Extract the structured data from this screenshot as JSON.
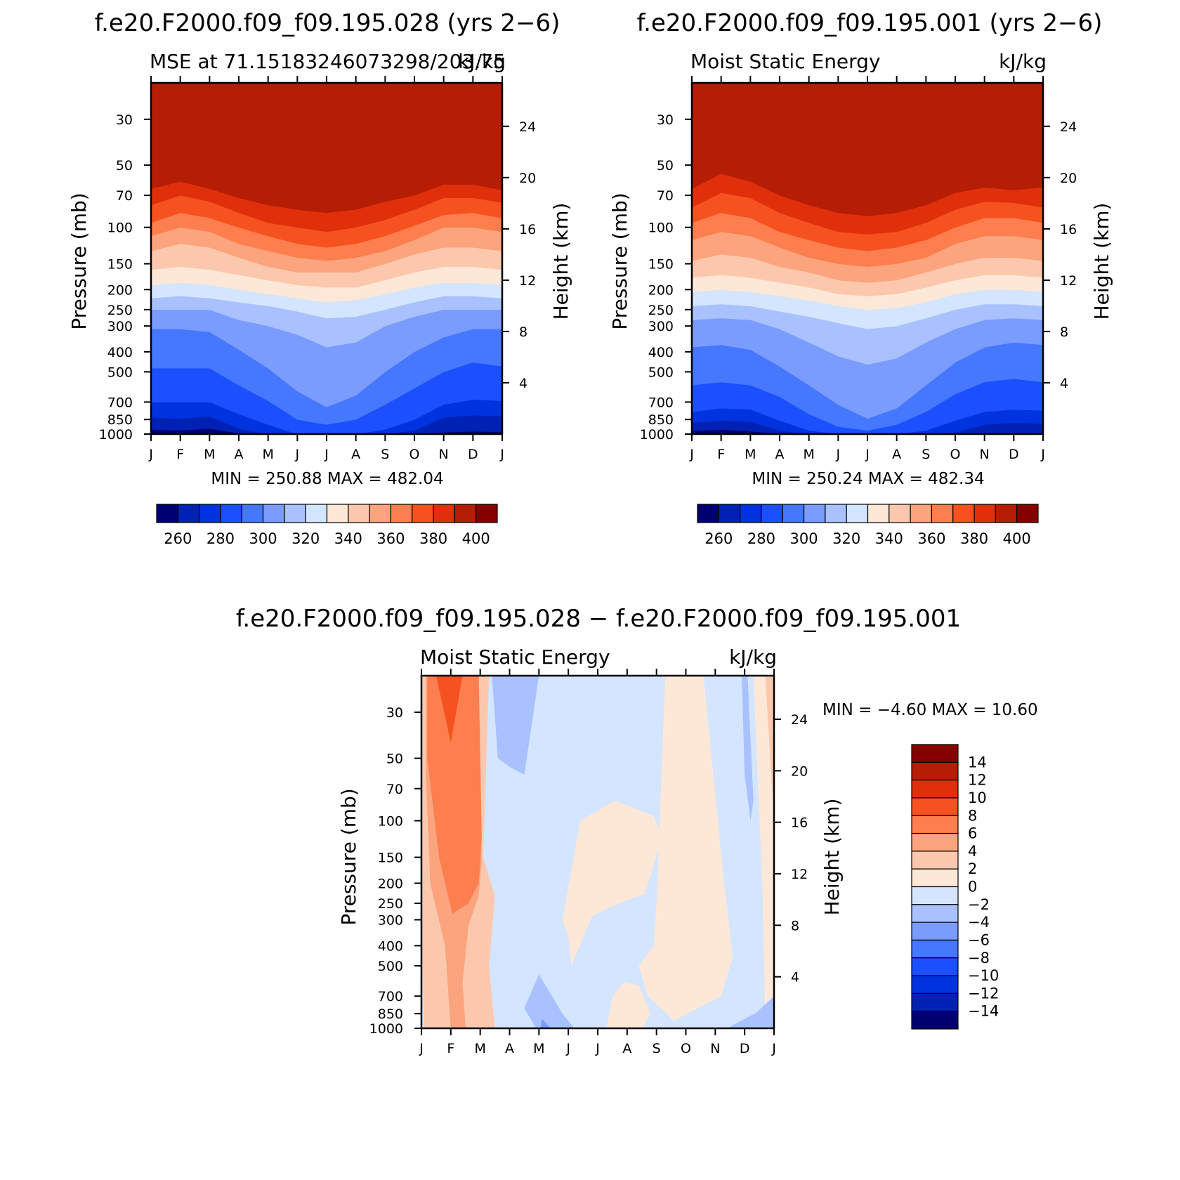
{
  "palette": {
    "blue_to_red": [
      "#00006e",
      "#0022b4",
      "#0033e0",
      "#1a50ff",
      "#4677ff",
      "#7a9cff",
      "#a9c1ff",
      "#d3e5ff",
      "#fde8d8",
      "#fcc8ad",
      "#fca47e",
      "#fd7e4e",
      "#f6521f",
      "#e0300b",
      "#b51d05",
      "#870000"
    ]
  },
  "months": [
    "J",
    "F",
    "M",
    "A",
    "M",
    "J",
    "J",
    "A",
    "S",
    "O",
    "N",
    "D",
    "J"
  ],
  "p_ticks": [
    "30",
    "50",
    "70",
    "100",
    "150",
    "200",
    "250",
    "300",
    "400",
    "500",
    "700",
    "850",
    "1000"
  ],
  "h_ticks": [
    "4",
    "8",
    "12",
    "16",
    "20",
    "24"
  ],
  "ylabel_left": "Pressure (mb)",
  "ylabel_right": "Height (km)",
  "chart_data": [
    {
      "type": "heatmap",
      "title": "f.e20.F2000.f09_f09.195.028 (yrs 2−6)",
      "subtitle_left": "MSE at 71.15183246073298/203.75",
      "subtitle_right": "kJ/kg",
      "x": "months J..J",
      "ylabel": "Pressure (mb)",
      "ylabel_right": "Height (km)",
      "min_max_text": "MIN = 250.88 MAX = 482.04",
      "colorbar_labels": [
        "260",
        "280",
        "300",
        "320",
        "340",
        "360",
        "380",
        "400"
      ],
      "contour_levels_pressure_mb": [
        [
          950,
          960,
          940,
          990,
          1000,
          1000,
          1000,
          1000,
          1000,
          1000,
          980,
          970,
          975
        ],
        [
          830,
          840,
          820,
          940,
          1000,
          1000,
          1000,
          1000,
          1000,
          960,
          830,
          810,
          820
        ],
        [
          700,
          700,
          700,
          800,
          900,
          1000,
          1000,
          1000,
          950,
          850,
          720,
          680,
          690
        ],
        [
          480,
          480,
          480,
          580,
          690,
          850,
          900,
          850,
          720,
          600,
          500,
          450,
          470
        ],
        [
          310,
          310,
          320,
          390,
          480,
          620,
          740,
          650,
          500,
          400,
          340,
          310,
          310
        ],
        [
          250,
          250,
          250,
          280,
          300,
          330,
          380,
          360,
          300,
          270,
          250,
          250,
          250
        ],
        [
          220,
          215,
          220,
          230,
          240,
          255,
          275,
          270,
          250,
          230,
          215,
          215,
          220
        ],
        [
          190,
          185,
          190,
          200,
          210,
          220,
          230,
          225,
          210,
          195,
          185,
          185,
          190
        ],
        [
          160,
          155,
          160,
          170,
          180,
          190,
          195,
          195,
          180,
          165,
          155,
          155,
          160
        ],
        [
          130,
          120,
          125,
          140,
          155,
          165,
          165,
          165,
          150,
          135,
          125,
          125,
          130
        ],
        [
          110,
          100,
          105,
          120,
          130,
          140,
          145,
          140,
          130,
          115,
          100,
          100,
          105
        ],
        [
          95,
          85,
          90,
          100,
          110,
          120,
          125,
          120,
          110,
          98,
          87,
          85,
          90
        ],
        [
          78,
          70,
          75,
          85,
          95,
          100,
          105,
          100,
          92,
          82,
          72,
          72,
          76
        ],
        [
          65,
          60,
          65,
          72,
          78,
          82,
          85,
          82,
          75,
          70,
          62,
          62,
          66
        ]
      ]
    },
    {
      "type": "heatmap",
      "title": "f.e20.F2000.f09_f09.195.001 (yrs 2−6)",
      "subtitle_left": "Moist Static Energy",
      "subtitle_right": "kJ/kg",
      "x": "months J..J",
      "ylabel": "Pressure (mb)",
      "ylabel_right": "Height (km)",
      "min_max_text": "MIN = 250.24 MAX = 482.34",
      "colorbar_labels": [
        "260",
        "280",
        "300",
        "320",
        "340",
        "360",
        "380",
        "400"
      ],
      "contour_levels_pressure_mb": [
        [
          965,
          950,
          970,
          995,
          1000,
          1000,
          1000,
          1000,
          1000,
          1000,
          990,
          985,
          990
        ],
        [
          880,
          860,
          870,
          960,
          1000,
          1000,
          1000,
          1000,
          1000,
          980,
          900,
          880,
          890
        ],
        [
          780,
          750,
          760,
          860,
          960,
          1000,
          1000,
          1000,
          960,
          860,
          780,
          760,
          770
        ],
        [
          580,
          560,
          580,
          660,
          800,
          920,
          960,
          900,
          780,
          640,
          560,
          540,
          560
        ],
        [
          380,
          370,
          390,
          470,
          580,
          720,
          840,
          750,
          580,
          450,
          380,
          360,
          370
        ],
        [
          280,
          275,
          280,
          310,
          360,
          420,
          460,
          430,
          360,
          310,
          280,
          275,
          280
        ],
        [
          240,
          235,
          240,
          255,
          270,
          290,
          310,
          300,
          275,
          250,
          235,
          235,
          240
        ],
        [
          205,
          200,
          205,
          215,
          225,
          240,
          250,
          245,
          230,
          210,
          200,
          200,
          205
        ],
        [
          175,
          170,
          175,
          185,
          195,
          210,
          215,
          210,
          195,
          180,
          170,
          170,
          175
        ],
        [
          145,
          135,
          140,
          155,
          165,
          180,
          185,
          180,
          165,
          150,
          140,
          140,
          145
        ],
        [
          115,
          105,
          110,
          125,
          140,
          150,
          155,
          150,
          140,
          120,
          110,
          110,
          115
        ],
        [
          95,
          85,
          90,
          105,
          115,
          125,
          130,
          125,
          115,
          100,
          90,
          90,
          95
        ],
        [
          80,
          68,
          72,
          85,
          95,
          105,
          108,
          105,
          95,
          82,
          75,
          76,
          80
        ],
        [
          65,
          55,
          60,
          70,
          78,
          85,
          88,
          85,
          78,
          68,
          64,
          66,
          64
        ]
      ]
    },
    {
      "type": "heatmap",
      "title": "f.e20.F2000.f09_f09.195.028 − f.e20.F2000.f09_f09.195.001",
      "subtitle_left": "Moist Static Energy",
      "subtitle_right": "kJ/kg",
      "x": "months J..J",
      "ylabel": "Pressure (mb)",
      "ylabel_right": "Height (km)",
      "min_max_text": "MIN = −4.60 MAX = 10.60",
      "colorbar_labels": [
        "14",
        "12",
        "10",
        "8",
        "6",
        "4",
        "2",
        "0",
        "−2",
        "−4",
        "−6",
        "−8",
        "−10",
        "−12",
        "−14"
      ],
      "regions": [
        {
          "range": "2 to 4",
          "polygon_month_pressure": [
            [
              0,
              20
            ],
            [
              0.9,
              20
            ],
            [
              1.9,
              20
            ],
            [
              2.3,
              20
            ],
            [
              2.1,
              150
            ],
            [
              2.5,
              230
            ],
            [
              2.3,
              500
            ],
            [
              2.5,
              1000
            ],
            [
              0.1,
              1000
            ],
            [
              0,
              400
            ]
          ]
        },
        {
          "range": "4 to 6",
          "polygon_month_pressure": [
            [
              0.15,
              20
            ],
            [
              1.9,
              20
            ],
            [
              2.05,
              160
            ],
            [
              1.95,
              230
            ],
            [
              1.6,
              320
            ],
            [
              1.4,
              600
            ],
            [
              1.5,
              1000
            ],
            [
              1.0,
              1000
            ],
            [
              0.8,
              400
            ],
            [
              0.3,
              200
            ],
            [
              0.15,
              60
            ]
          ]
        },
        {
          "range": "6 to 8",
          "polygon_month_pressure": [
            [
              0.2,
              20
            ],
            [
              1.95,
              20
            ],
            [
              2.05,
              120
            ],
            [
              1.95,
              200
            ],
            [
              1.6,
              250
            ],
            [
              1.05,
              280
            ],
            [
              0.6,
              150
            ],
            [
              0.2,
              50
            ]
          ]
        },
        {
          "range": "8 to 10",
          "polygon_month_pressure": [
            [
              0.5,
              20
            ],
            [
              1.4,
              20
            ],
            [
              1.0,
              42
            ]
          ]
        },
        {
          "range": "0 to 2",
          "polygon_month_pressure": [
            [
              5.4,
              100
            ],
            [
              6.6,
              80
            ],
            [
              7.9,
              95
            ],
            [
              8.2,
              120
            ],
            [
              7.6,
              225
            ],
            [
              6.3,
              265
            ],
            [
              5.8,
              290
            ],
            [
              5.1,
              500
            ],
            [
              5.0,
              360
            ],
            [
              4.8,
              300
            ]
          ]
        },
        {
          "range": "0 to 2",
          "polygon_month_pressure": [
            [
              8.3,
              20
            ],
            [
              9.6,
              20
            ],
            [
              10.3,
              200
            ],
            [
              10.6,
              450
            ],
            [
              10.2,
              700
            ],
            [
              8.6,
              920
            ],
            [
              7.7,
              700
            ],
            [
              7.4,
              500
            ],
            [
              7.9,
              400
            ],
            [
              8.0,
              250
            ]
          ]
        },
        {
          "range": "0 to 2",
          "polygon_month_pressure": [
            [
              6.3,
              1000
            ],
            [
              7.5,
              1000
            ],
            [
              7.8,
              850
            ],
            [
              7.4,
              620
            ],
            [
              6.9,
              600
            ],
            [
              6.5,
              700
            ]
          ]
        },
        {
          "range": "0 to 2",
          "polygon_month_pressure": [
            [
              11.3,
              20
            ],
            [
              12,
              20
            ],
            [
              12,
              1000
            ],
            [
              11.7,
              900
            ],
            [
              11.6,
              200
            ]
          ]
        },
        {
          "range": "2 to 4",
          "polygon_month_pressure": [
            [
              11.7,
              20
            ],
            [
              12,
              20
            ],
            [
              12,
              100
            ]
          ]
        },
        {
          "range": "−2 to −4",
          "polygon_month_pressure": [
            [
              2.4,
              20
            ],
            [
              4.0,
              20
            ],
            [
              3.5,
              60
            ],
            [
              3.0,
              55
            ],
            [
              2.6,
              50
            ]
          ]
        },
        {
          "range": "−2 to −4",
          "polygon_month_pressure": [
            [
              4.0,
              550
            ],
            [
              4.8,
              850
            ],
            [
              5.2,
              1000
            ],
            [
              3.9,
              1000
            ],
            [
              3.5,
              800
            ]
          ]
        },
        {
          "range": "−2 to −4",
          "polygon_month_pressure": [
            [
              10.9,
              20
            ],
            [
              11.1,
              20
            ],
            [
              11.3,
              80
            ],
            [
              11.2,
              100
            ],
            [
              11.0,
              60
            ]
          ]
        },
        {
          "range": "−2 to −4",
          "polygon_month_pressure": [
            [
              10.4,
              1000
            ],
            [
              12,
              1000
            ],
            [
              12,
              700
            ],
            [
              11.4,
              840
            ]
          ]
        },
        {
          "range": "−4 to −6",
          "polygon_month_pressure": [
            [
              4.1,
              900
            ],
            [
              4.4,
              1000
            ],
            [
              4.05,
              1000
            ]
          ]
        }
      ]
    }
  ]
}
